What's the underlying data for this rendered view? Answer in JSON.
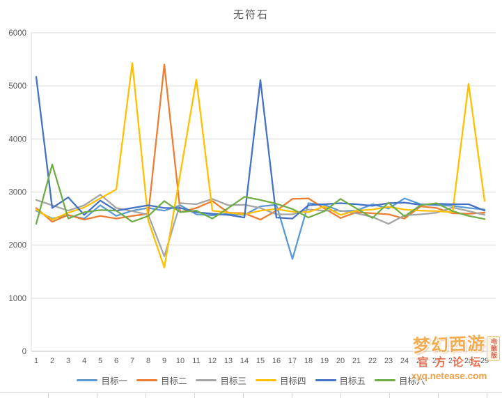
{
  "chart_data": {
    "type": "line",
    "title": "无符石",
    "x": [
      1,
      2,
      3,
      4,
      5,
      6,
      7,
      8,
      9,
      10,
      11,
      12,
      13,
      14,
      15,
      16,
      17,
      18,
      19,
      20,
      21,
      22,
      23,
      24,
      25,
      26,
      27,
      28,
      29
    ],
    "ylim": [
      0,
      6000
    ],
    "yticks": [
      0,
      1000,
      2000,
      3000,
      4000,
      5000,
      6000
    ],
    "grid": "horizontal",
    "legend_position": "bottom",
    "series": [
      {
        "name": "目标一",
        "color": "#5B9BD5",
        "values": [
          2650,
          2500,
          2560,
          2500,
          2750,
          2550,
          2650,
          2700,
          2650,
          2750,
          2580,
          2560,
          2590,
          2570,
          2730,
          2760,
          1740,
          2790,
          2760,
          2640,
          2650,
          2770,
          2690,
          2880,
          2770,
          2750,
          2740,
          2700,
          2670
        ]
      },
      {
        "name": "目标二",
        "color": "#ED7D31",
        "values": [
          2700,
          2440,
          2570,
          2480,
          2550,
          2500,
          2550,
          2590,
          5400,
          2620,
          2700,
          2830,
          2610,
          2600,
          2480,
          2650,
          2870,
          2880,
          2690,
          2510,
          2620,
          2600,
          2580,
          2500,
          2730,
          2700,
          2600,
          2590,
          2610
        ]
      },
      {
        "name": "目标三",
        "color": "#A5A5A5",
        "values": [
          2850,
          2750,
          2650,
          2750,
          2950,
          2700,
          2640,
          2570,
          1790,
          2790,
          2770,
          2870,
          2750,
          2760,
          2700,
          2580,
          2580,
          2670,
          2650,
          2650,
          2600,
          2530,
          2400,
          2560,
          2580,
          2610,
          2710,
          2640,
          2570
        ]
      },
      {
        "name": "目标四",
        "color": "#FFC000",
        "values": [
          2670,
          2480,
          2610,
          2710,
          2880,
          3050,
          5430,
          2460,
          1580,
          3350,
          5120,
          2650,
          2610,
          2580,
          2650,
          2680,
          2630,
          2620,
          2730,
          2570,
          2650,
          2670,
          2720,
          2670,
          2650,
          2640,
          2620,
          5040,
          2830
        ]
      },
      {
        "name": "目标五",
        "color": "#4472C4",
        "values": [
          5170,
          2700,
          2900,
          2570,
          2840,
          2650,
          2700,
          2750,
          2700,
          2700,
          2620,
          2590,
          2570,
          2520,
          5110,
          2520,
          2500,
          2750,
          2770,
          2790,
          2770,
          2740,
          2790,
          2800,
          2760,
          2780,
          2770,
          2770,
          2650
        ]
      },
      {
        "name": "目标六",
        "color": "#70AD47",
        "values": [
          2400,
          3520,
          2500,
          2620,
          2660,
          2650,
          2440,
          2550,
          2830,
          2620,
          2650,
          2500,
          2700,
          2910,
          2850,
          2780,
          2680,
          2520,
          2640,
          2870,
          2690,
          2510,
          2800,
          2540,
          2750,
          2790,
          2640,
          2550,
          2490
        ]
      }
    ]
  },
  "watermark": {
    "line1": "梦幻西游",
    "line2": "官方论坛",
    "line3": "xyq.netease.com",
    "badge": "电脑版"
  },
  "style": {
    "gridline_color": "#D9D9D9",
    "axis_line_color": "#BFBFBF",
    "tick_label_color": "#595959",
    "title_color": "#595959"
  }
}
